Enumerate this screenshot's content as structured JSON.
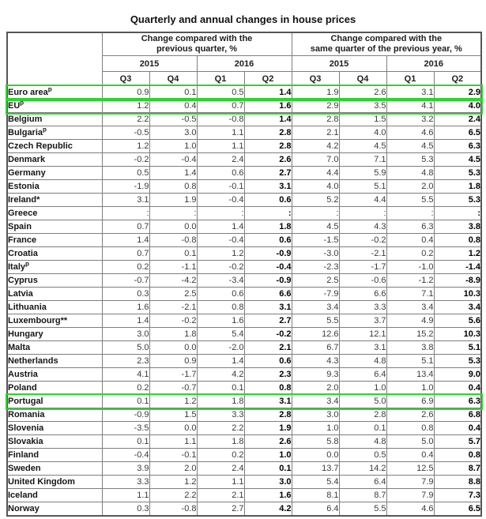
{
  "title": "Quarterly and annual changes in house prices",
  "highlight_color": "#2fd32f",
  "chart_data": {
    "type": "table",
    "title": "Quarterly and annual changes in house prices",
    "group_headers": [
      {
        "line1": "Change compared with the",
        "line2": "previous quarter, %"
      },
      {
        "line1": "Change compared with the",
        "line2": "same quarter of the previous year, %"
      }
    ],
    "years": [
      "2015",
      "2016",
      "2015",
      "2016"
    ],
    "quarters": [
      "Q3",
      "Q4",
      "Q1",
      "Q2",
      "Q3",
      "Q4",
      "Q1",
      "Q2"
    ],
    "highlighted_rows": [
      "Euro area",
      "EU",
      "Portugal"
    ],
    "rows": [
      {
        "name": "Euro area",
        "sup": "p",
        "highlight": true,
        "values": [
          "0.9",
          "0.1",
          "0.5",
          "1.4",
          "1.9",
          "2.6",
          "3.1",
          "2.9"
        ]
      },
      {
        "name": "EU",
        "sup": "p",
        "highlight": true,
        "values": [
          "1.2",
          "0.4",
          "0.7",
          "1.6",
          "2.9",
          "3.5",
          "4.1",
          "4.0"
        ]
      },
      {
        "name": "Belgium",
        "sup": "",
        "highlight": false,
        "values": [
          "2.2",
          "-0.5",
          "-0.8",
          "1.4",
          "2.8",
          "1.5",
          "3.2",
          "2.4"
        ]
      },
      {
        "name": "Bulgaria",
        "sup": "p",
        "highlight": false,
        "values": [
          "-0.5",
          "3.0",
          "1.1",
          "2.8",
          "2.1",
          "4.0",
          "4.6",
          "6.5"
        ]
      },
      {
        "name": "Czech Republic",
        "sup": "",
        "highlight": false,
        "values": [
          "1.2",
          "1.0",
          "1.1",
          "2.8",
          "4.2",
          "4.5",
          "4.5",
          "6.3"
        ]
      },
      {
        "name": "Denmark",
        "sup": "",
        "highlight": false,
        "values": [
          "-0.2",
          "-0.4",
          "2.4",
          "2.6",
          "7.0",
          "7.1",
          "5.3",
          "4.5"
        ]
      },
      {
        "name": "Germany",
        "sup": "",
        "highlight": false,
        "values": [
          "0.5",
          "1.4",
          "0.6",
          "2.7",
          "4.4",
          "5.9",
          "4.8",
          "5.3"
        ]
      },
      {
        "name": "Estonia",
        "sup": "",
        "highlight": false,
        "values": [
          "-1.9",
          "0.8",
          "-0.1",
          "3.1",
          "4.0",
          "5.1",
          "2.0",
          "1.8"
        ]
      },
      {
        "name": "Ireland",
        "sup": "*",
        "highlight": false,
        "values": [
          "3.1",
          "1.9",
          "-0.4",
          "0.6",
          "5.2",
          "4.4",
          "5.5",
          "5.3"
        ]
      },
      {
        "name": "Greece",
        "sup": "",
        "highlight": false,
        "values": [
          ":",
          ":",
          ":",
          ":",
          ":",
          ":",
          ":",
          ":"
        ]
      },
      {
        "name": "Spain",
        "sup": "",
        "highlight": false,
        "values": [
          "0.7",
          "0.0",
          "1.4",
          "1.8",
          "4.5",
          "4.3",
          "6.3",
          "3.8"
        ]
      },
      {
        "name": "France",
        "sup": "",
        "highlight": false,
        "values": [
          "1.4",
          "-0.8",
          "-0.4",
          "0.6",
          "-1.5",
          "-0.2",
          "0.4",
          "0.8"
        ]
      },
      {
        "name": "Croatia",
        "sup": "",
        "highlight": false,
        "values": [
          "0.7",
          "0.1",
          "1.2",
          "-0.9",
          "-3.0",
          "-2.1",
          "0.2",
          "1.2"
        ]
      },
      {
        "name": "Italy",
        "sup": "p",
        "highlight": false,
        "values": [
          "0.2",
          "-1.1",
          "-0.2",
          "-0.4",
          "-2.3",
          "-1.7",
          "-1.0",
          "-1.4"
        ]
      },
      {
        "name": "Cyprus",
        "sup": "",
        "highlight": false,
        "values": [
          "-0.7",
          "-4.2",
          "-3.4",
          "-0.9",
          "2.5",
          "-0.6",
          "-1.2",
          "-8.9"
        ]
      },
      {
        "name": "Latvia",
        "sup": "",
        "highlight": false,
        "values": [
          "0.3",
          "2.5",
          "0.6",
          "6.6",
          "-7.9",
          "6.6",
          "7.1",
          "10.3"
        ]
      },
      {
        "name": "Lithuania",
        "sup": "",
        "highlight": false,
        "values": [
          "1.6",
          "-2.1",
          "0.8",
          "3.1",
          "3.4",
          "3.3",
          "3.4",
          "3.4"
        ]
      },
      {
        "name": "Luxembourg",
        "sup": "**",
        "highlight": false,
        "values": [
          "1.4",
          "-0.2",
          "1.6",
          "2.7",
          "5.5",
          "3.7",
          "4.9",
          "5.6"
        ]
      },
      {
        "name": "Hungary",
        "sup": "",
        "highlight": false,
        "values": [
          "3.0",
          "1.8",
          "5.4",
          "-0.2",
          "12.6",
          "12.1",
          "15.2",
          "10.3"
        ]
      },
      {
        "name": "Malta",
        "sup": "",
        "highlight": false,
        "values": [
          "5.0",
          "0.0",
          "-2.0",
          "2.1",
          "6.7",
          "3.1",
          "3.8",
          "5.1"
        ]
      },
      {
        "name": "Netherlands",
        "sup": "",
        "highlight": false,
        "values": [
          "2.3",
          "0.9",
          "1.4",
          "0.6",
          "4.3",
          "4.8",
          "5.1",
          "5.3"
        ]
      },
      {
        "name": "Austria",
        "sup": "",
        "highlight": false,
        "values": [
          "4.1",
          "-1.7",
          "4.2",
          "2.3",
          "9.3",
          "6.4",
          "13.4",
          "9.0"
        ]
      },
      {
        "name": "Poland",
        "sup": "",
        "highlight": false,
        "values": [
          "0.2",
          "-0.7",
          "0.1",
          "0.8",
          "2.0",
          "1.0",
          "1.0",
          "0.4"
        ]
      },
      {
        "name": "Portugal",
        "sup": "",
        "highlight": true,
        "values": [
          "0.1",
          "1.2",
          "1.8",
          "3.1",
          "3.4",
          "5.0",
          "6.9",
          "6.3"
        ]
      },
      {
        "name": "Romania",
        "sup": "",
        "highlight": false,
        "values": [
          "-0.9",
          "1.5",
          "3.3",
          "2.8",
          "3.0",
          "2.8",
          "2.6",
          "6.8"
        ]
      },
      {
        "name": "Slovenia",
        "sup": "",
        "highlight": false,
        "values": [
          "-3.5",
          "0.0",
          "2.2",
          "1.9",
          "1.0",
          "0.1",
          "0.8",
          "0.4"
        ]
      },
      {
        "name": "Slovakia",
        "sup": "",
        "highlight": false,
        "values": [
          "0.1",
          "1.1",
          "1.8",
          "2.6",
          "5.8",
          "4.8",
          "5.0",
          "5.7"
        ]
      },
      {
        "name": "Finland",
        "sup": "",
        "highlight": false,
        "values": [
          "-0.4",
          "-0.1",
          "0.2",
          "1.0",
          "0.0",
          "0.5",
          "0.4",
          "0.8"
        ]
      },
      {
        "name": "Sweden",
        "sup": "",
        "highlight": false,
        "values": [
          "3.9",
          "2.0",
          "2.4",
          "0.1",
          "13.7",
          "14.2",
          "12.5",
          "8.7"
        ]
      },
      {
        "name": "United Kingdom",
        "sup": "",
        "highlight": false,
        "values": [
          "3.3",
          "1.2",
          "1.1",
          "3.0",
          "5.4",
          "6.4",
          "7.9",
          "8.8"
        ]
      },
      {
        "name": "Iceland",
        "sup": "",
        "highlight": false,
        "values": [
          "1.1",
          "2.2",
          "2.1",
          "1.6",
          "8.1",
          "8.7",
          "7.9",
          "7.3"
        ]
      },
      {
        "name": "Norway",
        "sup": "",
        "highlight": false,
        "values": [
          "0.3",
          "-0.8",
          "2.7",
          "4.2",
          "6.4",
          "5.5",
          "4.6",
          "6.5"
        ]
      }
    ]
  }
}
